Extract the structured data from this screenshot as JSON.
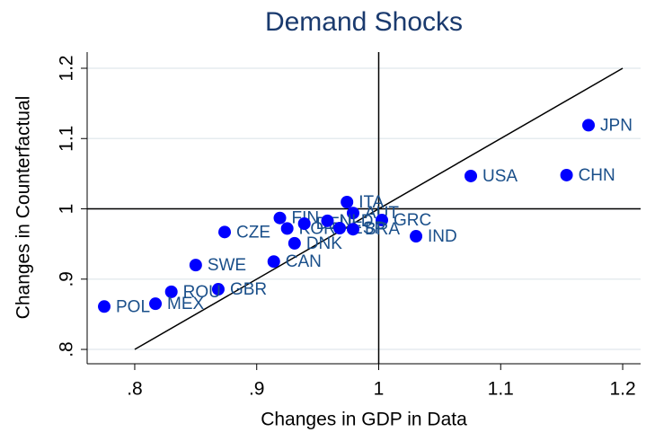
{
  "chart_data": {
    "type": "scatter",
    "title": "Demand Shocks",
    "x_label": "Changes in GDP in Data",
    "y_label": "Changes in Counterfactual",
    "labels": [
      "JPN",
      "USA",
      "CHN",
      "ITA",
      "AUT",
      "GRC",
      "FIN",
      "KOR",
      "DEU",
      "NLD",
      "ESP",
      "BRA",
      "IND",
      "CZE",
      "DNK",
      "CAN",
      "SWE",
      "GBR",
      "ROU",
      "MEX",
      "POL"
    ],
    "x": [
      1.172,
      1.0755,
      1.154,
      0.974,
      0.979,
      1.0026,
      0.919,
      0.925,
      0.939,
      0.958,
      0.968,
      0.979,
      1.0306,
      0.8737,
      0.931,
      0.914,
      0.85,
      0.8685,
      0.83,
      0.817,
      0.775
    ],
    "y": [
      1.119,
      1.0467,
      1.048,
      1.0096,
      0.994,
      0.984,
      0.987,
      0.972,
      0.979,
      0.983,
      0.9725,
      0.971,
      0.961,
      0.967,
      0.951,
      0.925,
      0.92,
      0.8856,
      0.882,
      0.865,
      0.861
    ],
    "color": "#0000ff",
    "label_color": "#1a4f8a",
    "xlim": [
      0.761,
      1.2147
    ],
    "ylim": [
      0.7796,
      1.223
    ],
    "xticks": [
      {
        "value": 0.8,
        "label": ".8"
      },
      {
        "value": 0.9,
        "label": ".9"
      },
      1,
      1.1,
      1.2
    ],
    "yticks": [
      {
        "value": 0.8,
        "label": ".8"
      },
      {
        "value": 0.9,
        "label": ".9"
      },
      1,
      1.1,
      1.2
    ],
    "grid": true,
    "hline": 1,
    "vline": 1,
    "diagonal": [
      0.8,
      1.2
    ]
  }
}
